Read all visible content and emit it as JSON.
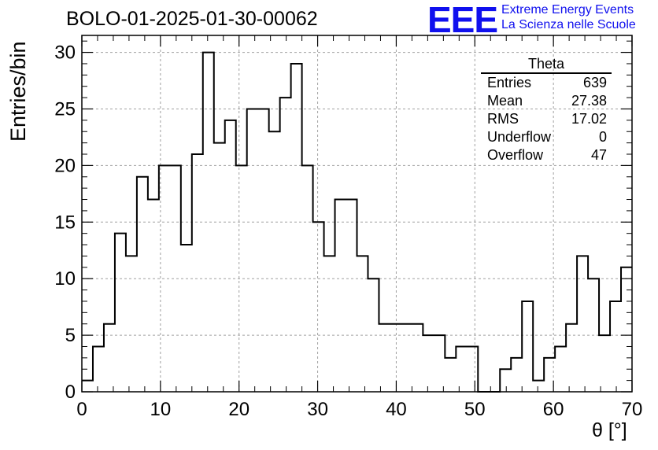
{
  "header": {
    "title": "BOLO-01-2025-01-30-00062",
    "logo": "EEE",
    "logo_line1": "Extreme Energy Events",
    "logo_line2": "La Scienza nelle Scuole",
    "logo_color": "#1010ee"
  },
  "stats_box": {
    "title": "Theta",
    "rows": [
      {
        "label": "Entries",
        "value": "639"
      },
      {
        "label": "Mean",
        "value": "27.38"
      },
      {
        "label": "RMS",
        "value": "17.02"
      },
      {
        "label": "Underflow",
        "value": "0"
      },
      {
        "label": "Overflow",
        "value": "47"
      }
    ]
  },
  "chart_data": {
    "type": "histogram",
    "title": "BOLO-01-2025-01-30-00062",
    "xlabel": "θ [°]",
    "ylabel": "Entries/bin",
    "xlim": [
      0,
      70
    ],
    "ylim": [
      0,
      31.5
    ],
    "bin_width": 1.4,
    "bin_edges_start": 0,
    "values": [
      1,
      4,
      6,
      14,
      12,
      19,
      17,
      20,
      20,
      13,
      21,
      30,
      22,
      24,
      20,
      25,
      25,
      23,
      26,
      29,
      20,
      15,
      12,
      17,
      17,
      12,
      10,
      6,
      6,
      6,
      6,
      5,
      5,
      3,
      4,
      4,
      0,
      0,
      2,
      3,
      8,
      1,
      3,
      4,
      6,
      12,
      10,
      5,
      8,
      11
    ],
    "x_ticks": [
      0,
      10,
      20,
      30,
      40,
      50,
      60,
      70
    ],
    "x_tick_labels": [
      "0",
      "10",
      "20",
      "30",
      "40",
      "50",
      "60",
      "70"
    ],
    "y_ticks": [
      0,
      5,
      10,
      15,
      20,
      25,
      30
    ],
    "y_tick_labels": [
      "0",
      "5",
      "10",
      "15",
      "20",
      "25",
      "30"
    ],
    "grid": true,
    "line_color": "#000000"
  }
}
